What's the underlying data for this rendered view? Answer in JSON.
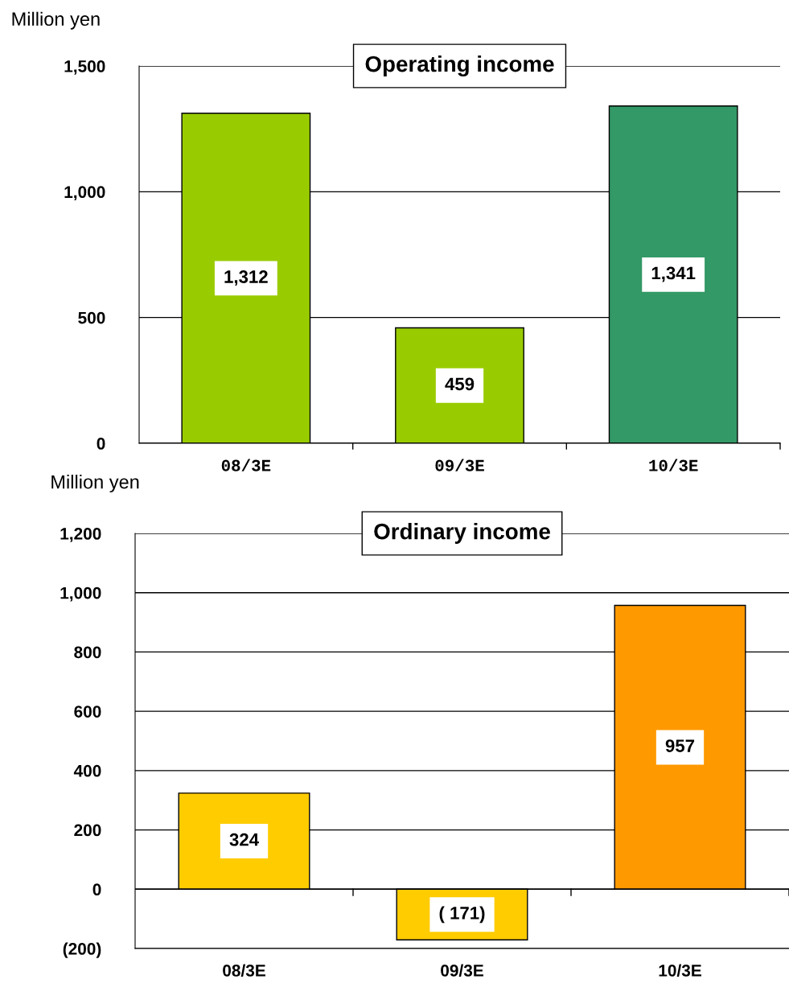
{
  "chart_data": [
    {
      "type": "bar",
      "title": "Operating income",
      "ylabel": "Million yen",
      "categories": [
        "08/3E",
        "09/3E",
        "10/3E"
      ],
      "values": [
        1312,
        459,
        1341
      ],
      "colors": [
        "#99cc00",
        "#99cc00",
        "#339966"
      ],
      "value_labels": [
        "1,312",
        "459",
        "1,341"
      ],
      "ylim": [
        0,
        1500
      ],
      "yticks": [
        {
          "value": 0,
          "label": "0"
        },
        {
          "value": 500,
          "label": "500"
        },
        {
          "value": 1000,
          "label": "1,000"
        },
        {
          "value": 1500,
          "label": "1,500"
        }
      ],
      "grid": "y",
      "legend": false
    },
    {
      "type": "bar",
      "title": "Ordinary income",
      "ylabel": "Million yen",
      "categories": [
        "08/3E",
        "09/3E",
        "10/3E"
      ],
      "values": [
        324,
        -171,
        957
      ],
      "colors": [
        "#ffcc00",
        "#ffcc00",
        "#ff9900"
      ],
      "value_labels": [
        "324",
        "( 171)",
        "957"
      ],
      "ylim": [
        -200,
        1200
      ],
      "yticks": [
        {
          "value": -200,
          "label": "(200)"
        },
        {
          "value": 0,
          "label": "0"
        },
        {
          "value": 200,
          "label": "200"
        },
        {
          "value": 400,
          "label": "400"
        },
        {
          "value": 600,
          "label": "600"
        },
        {
          "value": 800,
          "label": "800"
        },
        {
          "value": 1000,
          "label": "1,000"
        },
        {
          "value": 1200,
          "label": "1,200"
        }
      ],
      "grid": "y",
      "legend": false
    }
  ]
}
